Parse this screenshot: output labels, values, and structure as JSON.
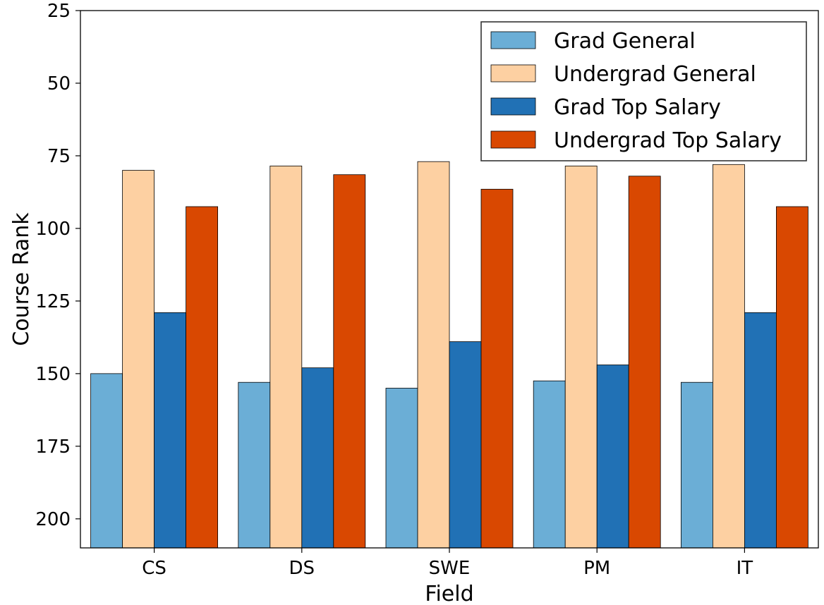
{
  "chart_data": {
    "type": "bar",
    "title": "",
    "xlabel": "Field",
    "ylabel": "Course Rank",
    "categories": [
      "CS",
      "DS",
      "SWE",
      "PM",
      "IT"
    ],
    "y_inverted": true,
    "ylim": [
      25,
      210
    ],
    "yticks": [
      25,
      50,
      75,
      100,
      125,
      150,
      175,
      200
    ],
    "baseline": 210,
    "grid": false,
    "legend_position": "top-right",
    "series": [
      {
        "name": "Grad General",
        "color": "#6baed6",
        "values": [
          150,
          153,
          155,
          152.5,
          153
        ]
      },
      {
        "name": "Undergrad General",
        "color": "#fdd0a2",
        "values": [
          80,
          78.5,
          77,
          78.5,
          78
        ]
      },
      {
        "name": "Grad Top Salary",
        "color": "#2171b5",
        "values": [
          129,
          148,
          139,
          147,
          129
        ]
      },
      {
        "name": "Undergrad Top Salary",
        "color": "#d94801",
        "values": [
          92.5,
          81.5,
          86.5,
          82,
          92.5
        ]
      }
    ]
  }
}
